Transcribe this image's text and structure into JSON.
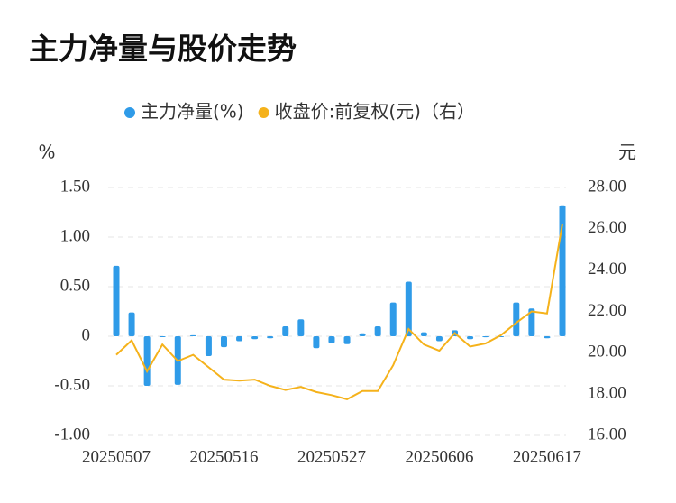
{
  "chart_data": {
    "type": "bar_line",
    "title": "主力净量与股价走势",
    "y_unit": "%",
    "y2_unit": "元",
    "categories": [
      "20250507",
      null,
      null,
      null,
      null,
      null,
      null,
      "20250516",
      null,
      null,
      null,
      null,
      null,
      null,
      "20250527",
      null,
      null,
      null,
      null,
      null,
      null,
      "20250606",
      null,
      null,
      null,
      null,
      null,
      null,
      "20250617",
      null
    ],
    "series": [
      {
        "name": "主力净量(%)",
        "type": "bar",
        "color": "#2f9be8",
        "values": [
          0.71,
          0.24,
          -0.5,
          0,
          -0.49,
          0.01,
          -0.2,
          -0.11,
          -0.05,
          -0.03,
          -0.02,
          0.1,
          0.17,
          -0.12,
          -0.07,
          -0.08,
          0.03,
          0.1,
          0.34,
          0.55,
          0.04,
          -0.05,
          0.06,
          -0.03,
          -0.01,
          0,
          0.34,
          0.28,
          -0.02,
          1.32
        ]
      },
      {
        "name": "收盘价:前复权(元)（右）",
        "type": "line",
        "axis": "y2",
        "color": "#f5b21b",
        "values": [
          19.9,
          20.6,
          19.1,
          20.4,
          19.6,
          19.9,
          19.3,
          18.7,
          18.65,
          18.7,
          18.4,
          18.2,
          18.35,
          18.1,
          17.95,
          17.75,
          18.15,
          18.15,
          19.4,
          21.15,
          20.4,
          20.1,
          20.95,
          20.3,
          20.45,
          20.85,
          21.45,
          22.0,
          21.9,
          26.25
        ]
      }
    ],
    "ylim": [
      -1,
      1.5
    ],
    "yticks": [
      {
        "value": 1.5,
        "label": "1.50"
      },
      {
        "value": 1,
        "label": "1.00"
      },
      {
        "value": 0.5,
        "label": "0.50"
      },
      0,
      {
        "value": -0.5,
        "label": "-0.50"
      },
      {
        "value": -1,
        "label": "-1.00"
      }
    ],
    "y2lim": [
      16,
      28
    ],
    "y2ticks": [
      {
        "value": 28,
        "label": "28.00"
      },
      {
        "value": 26,
        "label": "26.00"
      },
      {
        "value": 24,
        "label": "24.00"
      },
      {
        "value": 22,
        "label": "22.00"
      },
      {
        "value": 20,
        "label": "20.00"
      },
      {
        "value": 18,
        "label": "18.00"
      },
      {
        "value": 16,
        "label": "16.00"
      }
    ],
    "grid": true,
    "legend": "top"
  }
}
